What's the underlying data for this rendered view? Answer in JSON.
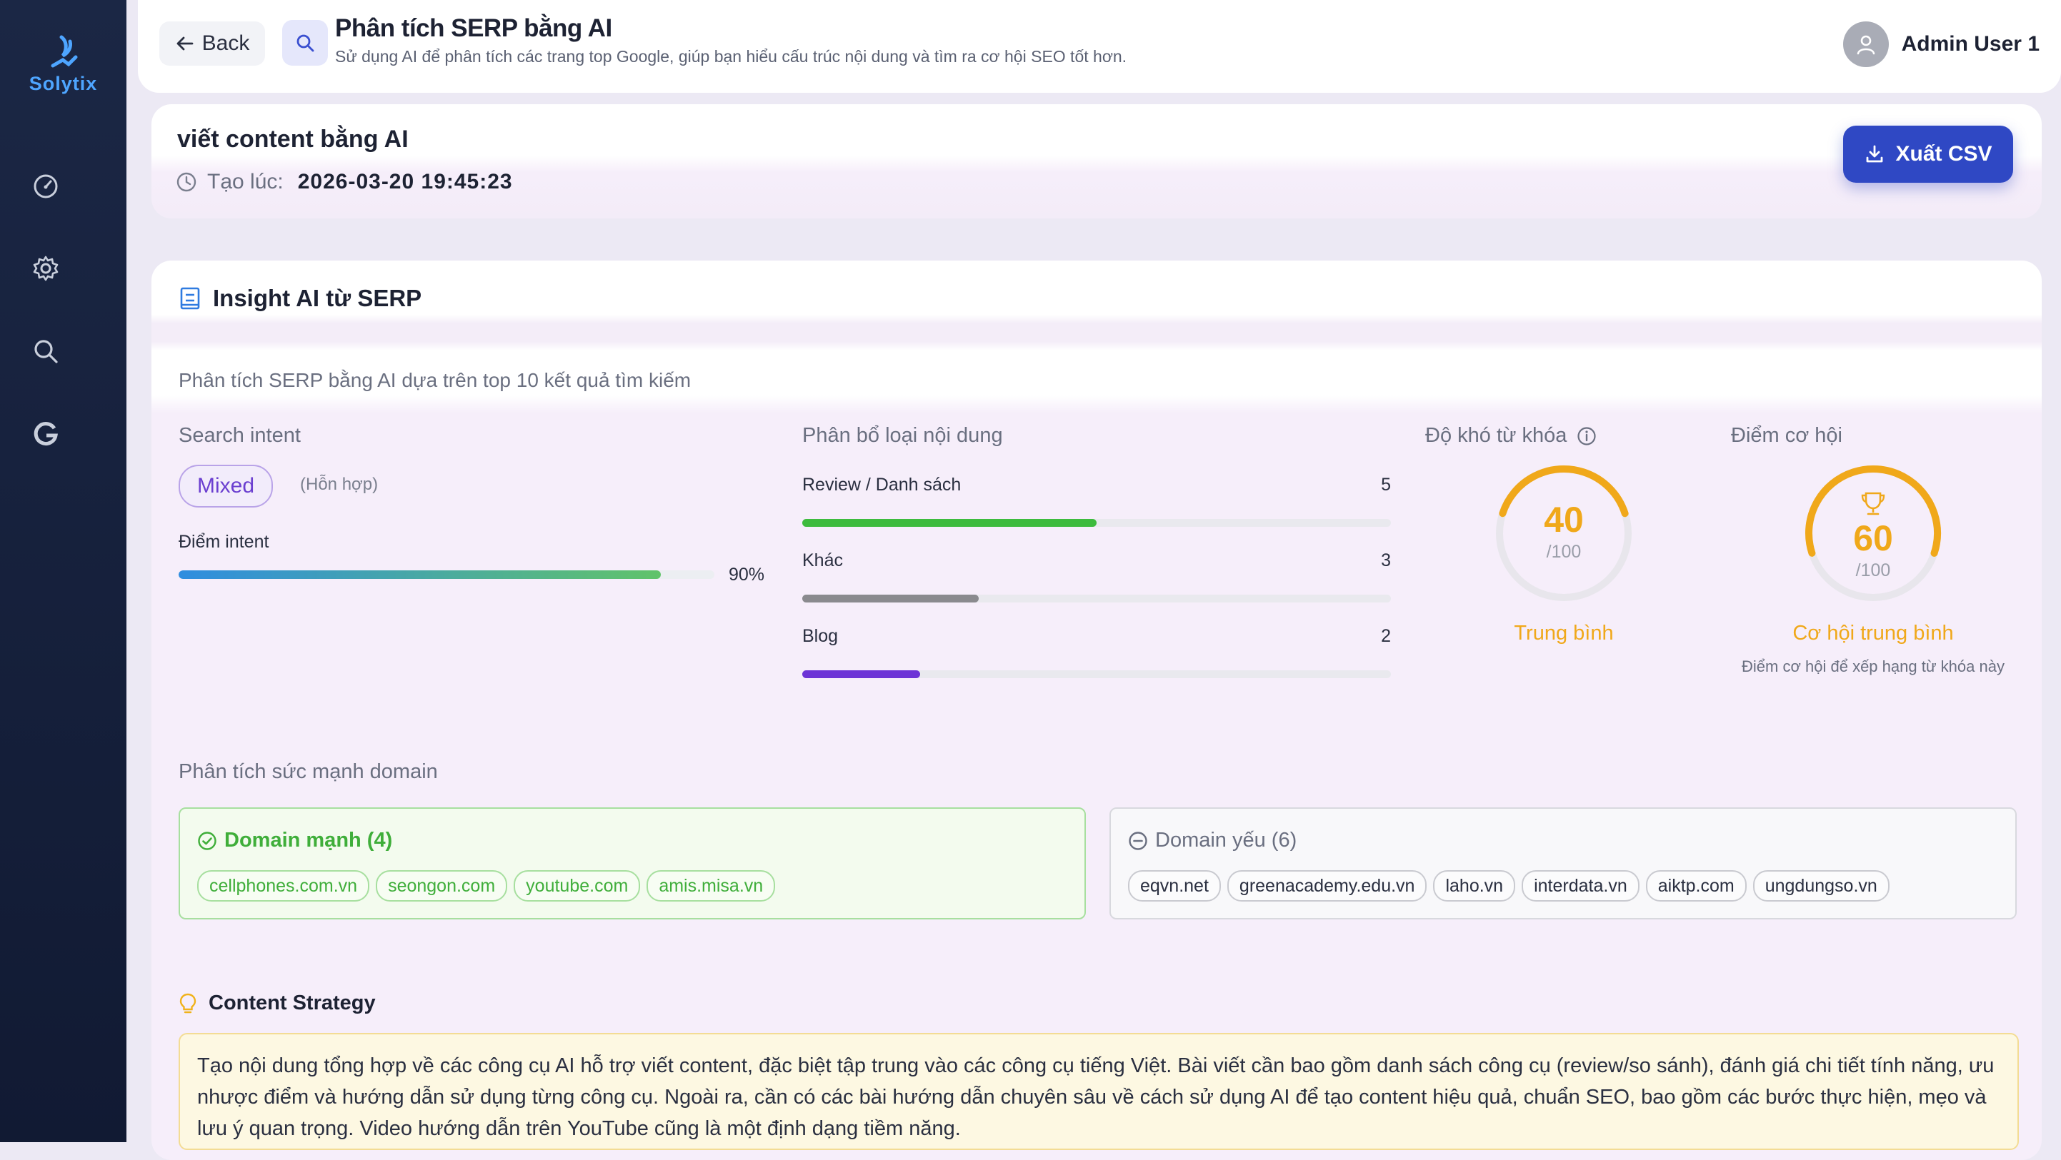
{
  "app": {
    "name": "Solytix"
  },
  "sidebar": {
    "items": [
      {
        "icon": "dashboard-icon"
      },
      {
        "icon": "gear-icon"
      },
      {
        "icon": "search-icon"
      },
      {
        "icon": "google-icon"
      }
    ]
  },
  "header": {
    "back_label": "Back",
    "title": "Phân tích SERP bằng AI",
    "subtitle": "Sử dụng AI để phân tích các trang top Google, giúp bạn hiểu cấu trúc nội dung và tìm ra cơ hội SEO tốt hơn.",
    "user_name": "Admin User 1"
  },
  "report": {
    "keyword": "viết content bằng AI",
    "created_label": "Tạo lúc:",
    "created_at": "2026-03-20 19:45:23",
    "export_label": "Xuất CSV"
  },
  "insight": {
    "title": "Insight AI từ SERP",
    "description": "Phân tích SERP bằng AI dựa trên top 10 kết quả tìm kiếm",
    "search_intent": {
      "label": "Search intent",
      "value": "Mixed",
      "value_vn": "(Hỗn hợp)",
      "score_label": "Điểm intent",
      "score_text": "90%",
      "score": 0.9
    },
    "content_distribution": {
      "label": "Phân bổ loại nội dung",
      "rows": [
        {
          "name": "Review / Danh sách",
          "count": "5",
          "fraction": 0.5,
          "color": "#3dbb3d"
        },
        {
          "name": "Khác",
          "count": "3",
          "fraction": 0.3,
          "color": "#8a8a8e"
        },
        {
          "name": "Blog",
          "count": "2",
          "fraction": 0.2,
          "color": "#6d34d6"
        }
      ]
    },
    "difficulty": {
      "label": "Độ khó từ khóa",
      "value": "40",
      "max": "/100",
      "score": 40,
      "level": "Trung bình"
    },
    "opportunity": {
      "label": "Điểm cơ hội",
      "value": "60",
      "max": "/100",
      "score": 60,
      "level": "Cơ hội trung bình",
      "note": "Điểm cơ hội để xếp hạng từ khóa này"
    },
    "domains": {
      "label": "Phân tích sức mạnh domain",
      "strong_title": "Domain mạnh (4)",
      "strong": [
        "cellphones.com.vn",
        "seongon.com",
        "youtube.com",
        "amis.misa.vn"
      ],
      "weak_title": "Domain yếu (6)",
      "weak": [
        "eqvn.net",
        "greenacademy.edu.vn",
        "laho.vn",
        "interdata.vn",
        "aiktp.com",
        "ungdungso.vn"
      ]
    },
    "strategy": {
      "title": "Content Strategy",
      "text": "Tạo nội dung tổng hợp về các công cụ AI hỗ trợ viết content, đặc biệt tập trung vào các công cụ tiếng Việt. Bài viết cần bao gồm danh sách công cụ (review/so sánh), đánh giá chi tiết tính năng, ưu nhược điểm và hướng dẫn sử dụng từng công cụ. Ngoài ra, cần có các bài hướng dẫn chuyên sâu về cách sử dụng AI để tạo content hiệu quả, chuẩn SEO, bao gồm các bước thực hiện, mẹo và lưu ý quan trọng. Video hướng dẫn trên YouTube cũng là một định dạng tiềm năng."
    }
  },
  "colors": {
    "accent": "#2f48c4",
    "gauge": "#f0a81a",
    "strong": "#3fae3a"
  }
}
